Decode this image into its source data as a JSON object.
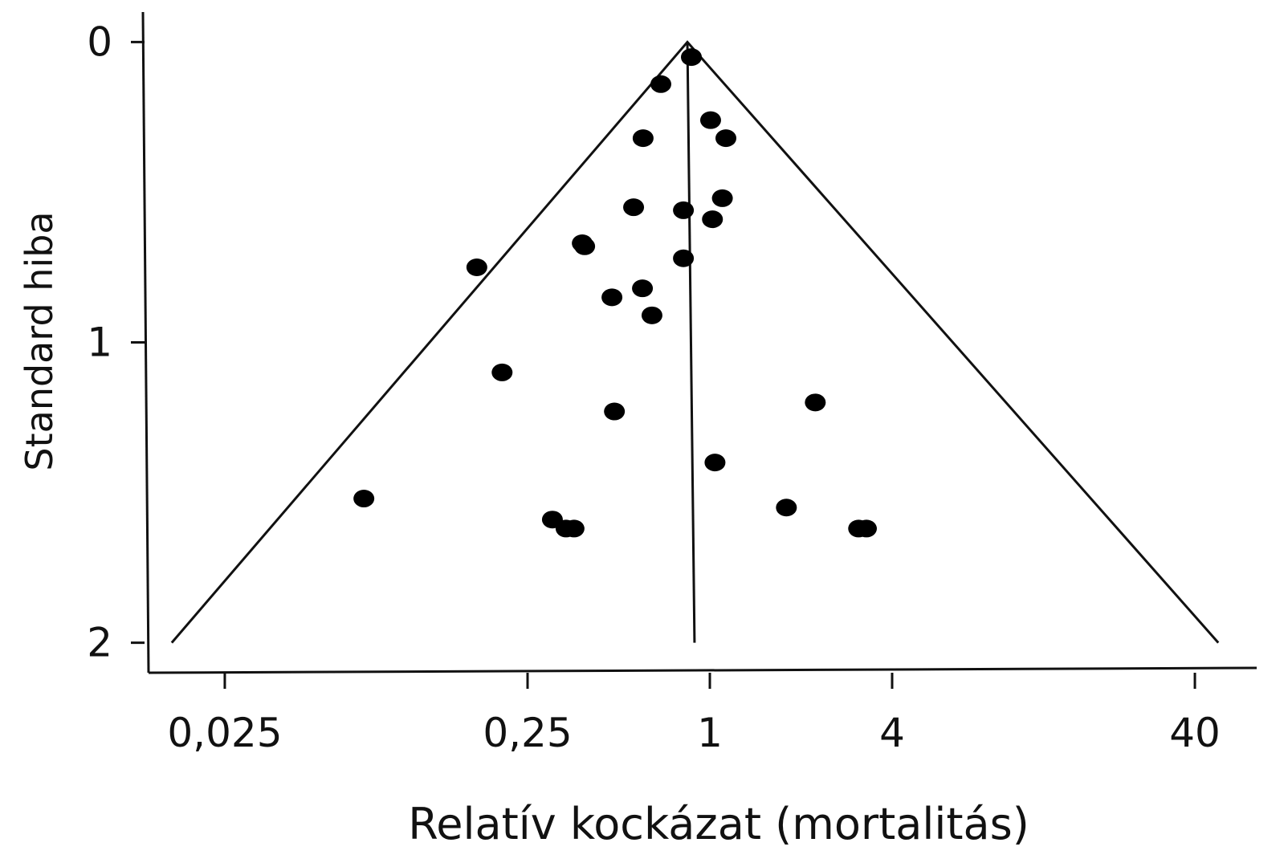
{
  "chart_data": {
    "type": "scatter",
    "x_label": "Relatív kockázat (mortalitás)",
    "y_label": "Standard hiba",
    "x_log": true,
    "y_inverted": true,
    "xlim": [
      0.014,
      64
    ],
    "ylim": [
      -0.1,
      2.1
    ],
    "xticks": [
      {
        "value": 0.025,
        "label": "0,025"
      },
      {
        "value": 0.25,
        "label": "0,25"
      },
      1,
      4,
      40
    ],
    "yticks": [
      0,
      1,
      2
    ],
    "color": "#000000",
    "x": [
      0.869,
      0.689,
      1.006,
      1.13,
      0.602,
      1.1,
      0.56,
      0.818,
      1.02,
      0.379,
      0.386,
      0.17,
      0.818,
      0.599,
      0.475,
      0.644,
      0.206,
      0.484,
      2.23,
      1.04,
      0.072,
      1.79,
      0.302,
      0.335,
      0.356,
      3.1,
      3.29
    ],
    "values": [
      0.05,
      0.14,
      0.26,
      0.32,
      0.32,
      0.52,
      0.55,
      0.56,
      0.59,
      0.67,
      0.68,
      0.75,
      0.72,
      0.82,
      0.85,
      0.91,
      1.1,
      1.23,
      1.2,
      1.4,
      1.52,
      1.55,
      1.59,
      1.62,
      1.62,
      1.62,
      1.62
    ],
    "lines": [
      {
        "x": [
          0.0167,
          0.843,
          47.8
        ],
        "y": [
          2,
          0,
          2
        ]
      },
      {
        "x": [
          0.843,
          0.89
        ],
        "y": [
          0,
          2
        ]
      }
    ]
  }
}
